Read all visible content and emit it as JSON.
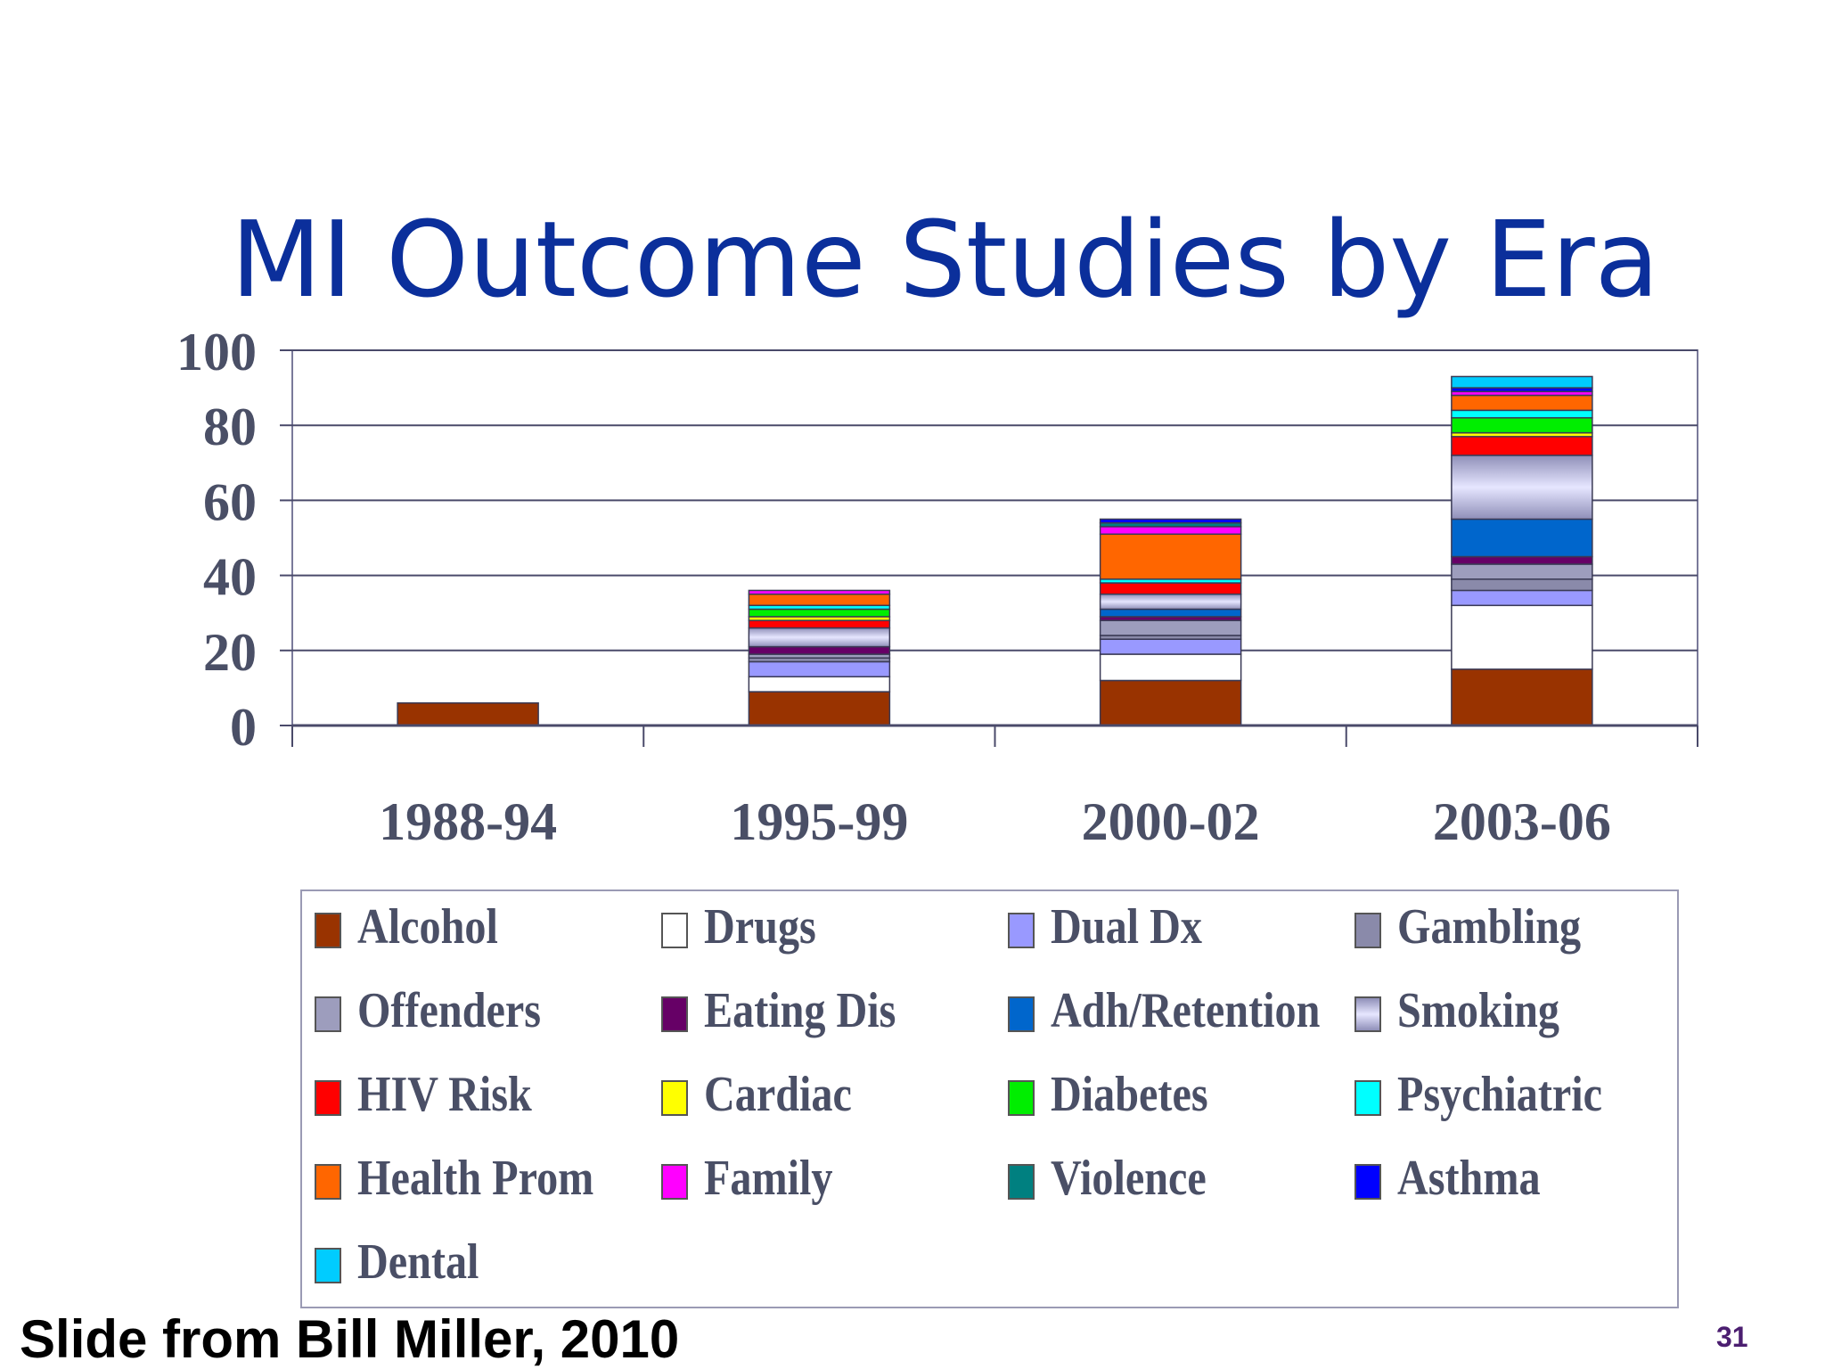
{
  "slide": {
    "title": "MI Outcome Studies by Era",
    "source": "Slide from Bill Miller, 2010",
    "page_number": "31"
  },
  "chart_data": {
    "type": "bar",
    "stacked": true,
    "title": "MI Outcome Studies by Era",
    "xlabel": "",
    "ylabel": "",
    "ylim": [
      0,
      100
    ],
    "yticks": [
      0,
      20,
      40,
      60,
      80,
      100
    ],
    "grid": true,
    "legend_position": "bottom",
    "categories": [
      "1988-94",
      "1995-99",
      "2000-02",
      "2003-06"
    ],
    "series": [
      {
        "name": "Alcohol",
        "color": "#993300",
        "values": [
          6,
          9,
          12,
          15
        ]
      },
      {
        "name": "Drugs",
        "color": "#ffffff",
        "values": [
          0,
          4,
          7,
          17
        ]
      },
      {
        "name": "Dual Dx",
        "color": "#9999ff",
        "values": [
          0,
          4,
          4,
          4
        ]
      },
      {
        "name": "Gambling",
        "color": "#8a8aaa",
        "values": [
          0,
          1,
          1,
          3
        ]
      },
      {
        "name": "Offenders",
        "color": "#9d9dbd",
        "values": [
          0,
          1,
          4,
          4
        ]
      },
      {
        "name": "Eating Dis",
        "color": "#660066",
        "values": [
          0,
          2,
          1,
          2
        ]
      },
      {
        "name": "Adh/Retention",
        "color": "#0066cc",
        "values": [
          0,
          0,
          2,
          10
        ]
      },
      {
        "name": "Smoking",
        "color": "#c4c4f4",
        "values": [
          0,
          5,
          4,
          17
        ]
      },
      {
        "name": "HIV Risk",
        "color": "#ff0000",
        "values": [
          0,
          2,
          3,
          5
        ]
      },
      {
        "name": "Cardiac",
        "color": "#ffff00",
        "values": [
          0,
          1,
          0,
          1
        ]
      },
      {
        "name": "Diabetes",
        "color": "#00ee00",
        "values": [
          0,
          2,
          0,
          4
        ]
      },
      {
        "name": "Psychiatric",
        "color": "#00ffff",
        "values": [
          0,
          1,
          1,
          2
        ]
      },
      {
        "name": "Health Prom",
        "color": "#ff6600",
        "values": [
          0,
          3,
          12,
          4
        ]
      },
      {
        "name": "Family",
        "color": "#ff00ff",
        "values": [
          0,
          1,
          2,
          1
        ]
      },
      {
        "name": "Violence",
        "color": "#008080",
        "values": [
          0,
          0,
          1,
          0
        ]
      },
      {
        "name": "Asthma",
        "color": "#0000ff",
        "values": [
          0,
          0,
          1,
          1
        ]
      },
      {
        "name": "Dental",
        "color": "#00ccff",
        "values": [
          0,
          0,
          0,
          3
        ]
      }
    ]
  }
}
